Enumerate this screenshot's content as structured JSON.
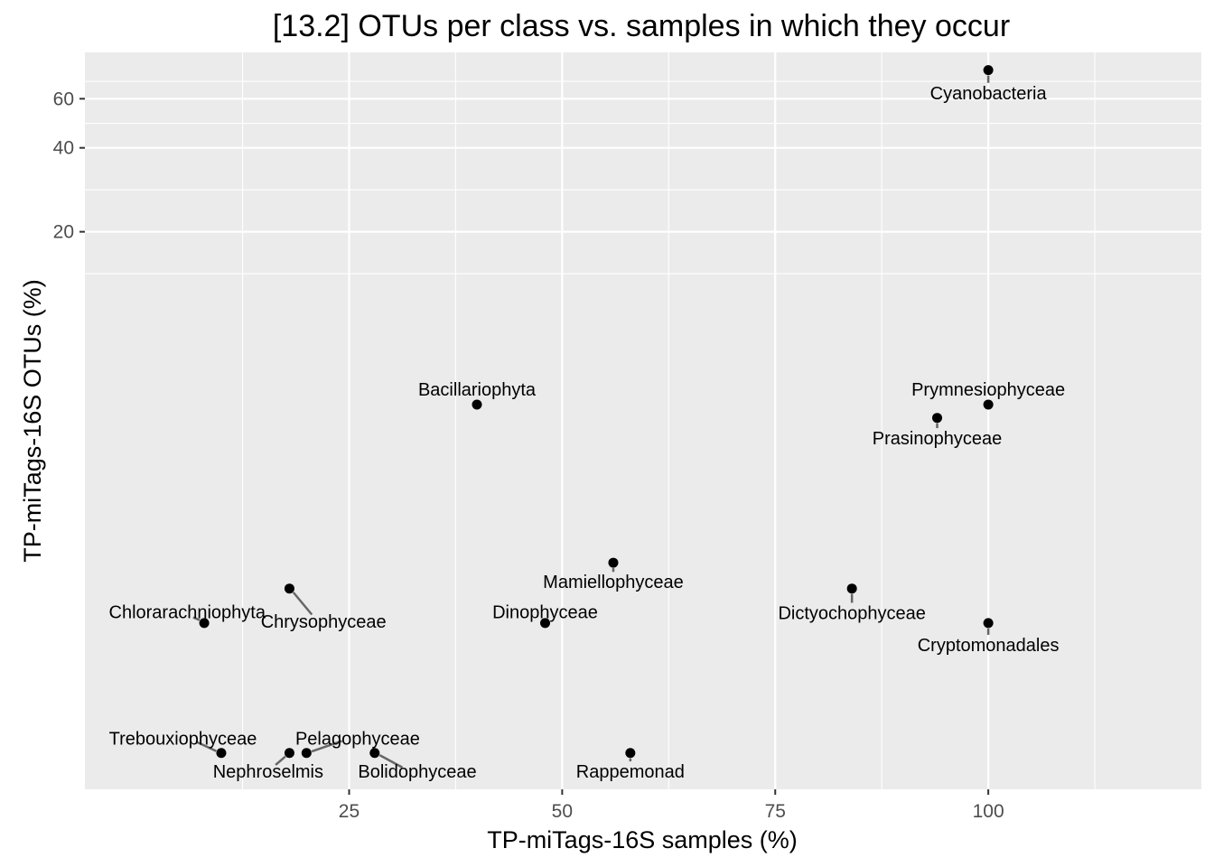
{
  "chart_data": {
    "type": "scatter",
    "title": "[13.2] OTUs per class vs. samples in which they occur",
    "xlabel": "TP-miTags-16S samples (%)",
    "ylabel": "TP-miTags-16S OTUs (%)",
    "xlim": [
      -6,
      125
    ],
    "x_ticks": [
      25,
      50,
      75,
      100
    ],
    "x_tick_labels": [
      "25",
      "50",
      "75",
      "100"
    ],
    "y_scale": "log",
    "ylim": [
      0.2,
      88
    ],
    "y_ticks": [
      20,
      40,
      60
    ],
    "y_tick_labels": [
      "20",
      "40",
      "60"
    ],
    "grid": true,
    "legend": "none",
    "point_color": "#000000",
    "panel_color": "#ebebeb",
    "grid_color": "#ffffff",
    "segment_color": "#666666",
    "points": [
      {
        "label": "Cyanobacteria",
        "x": 100,
        "y": 76,
        "lx": 100,
        "ly": 63
      },
      {
        "label": "Bacillariophyta",
        "x": 40,
        "y": 4.8,
        "lx": 40,
        "ly": 5.45
      },
      {
        "label": "Prymnesiophyceae",
        "x": 100,
        "y": 4.8,
        "lx": 100,
        "ly": 5.45
      },
      {
        "label": "Prasinophyceae",
        "x": 94,
        "y": 4.3,
        "lx": 94,
        "ly": 3.64
      },
      {
        "label": "Mamiellophyceae",
        "x": 56,
        "y": 1.3,
        "lx": 56,
        "ly": 1.11
      },
      {
        "label": "Dictyochophyceae",
        "x": 84,
        "y": 1.05,
        "lx": 84,
        "ly": 0.86
      },
      {
        "label": "Chrysophyceae",
        "x": 18,
        "y": 1.05,
        "lx": 22,
        "ly": 0.8
      },
      {
        "label": "Chlorarachniophyta",
        "x": 8,
        "y": 0.79,
        "lx": 6,
        "ly": 0.865
      },
      {
        "label": "Dinophyceae",
        "x": 48,
        "y": 0.79,
        "lx": 48,
        "ly": 0.865
      },
      {
        "label": "Cryptomonadales",
        "x": 100,
        "y": 0.79,
        "lx": 100,
        "ly": 0.66
      },
      {
        "label": "Trebouxiophyceae",
        "x": 10,
        "y": 0.27,
        "lx": 5.5,
        "ly": 0.305
      },
      {
        "label": "Nephroselmis",
        "x": 18,
        "y": 0.27,
        "lx": 15.5,
        "ly": 0.232
      },
      {
        "label": "Pelagophyceae",
        "x": 20,
        "y": 0.27,
        "lx": 26,
        "ly": 0.305
      },
      {
        "label": "Bolidophyceae",
        "x": 28,
        "y": 0.27,
        "lx": 33,
        "ly": 0.232
      },
      {
        "label": "Rappemonad",
        "x": 58,
        "y": 0.27,
        "lx": 58,
        "ly": 0.232
      }
    ]
  }
}
